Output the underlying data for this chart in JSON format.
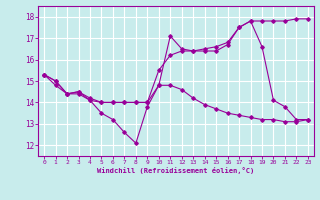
{
  "xlabel": "Windchill (Refroidissement éolien,°C)",
  "bg_color": "#c8ecec",
  "line_color": "#990099",
  "grid_color": "#ffffff",
  "xlim": [
    -0.5,
    23.5
  ],
  "ylim": [
    11.5,
    18.5
  ],
  "yticks": [
    12,
    13,
    14,
    15,
    16,
    17,
    18
  ],
  "xticks": [
    0,
    1,
    2,
    3,
    4,
    5,
    6,
    7,
    8,
    9,
    10,
    11,
    12,
    13,
    14,
    15,
    16,
    17,
    18,
    19,
    20,
    21,
    22,
    23
  ],
  "line1_x": [
    0,
    1,
    2,
    3,
    4,
    5,
    6,
    7,
    8,
    9,
    10,
    11,
    12,
    13,
    14,
    15,
    16,
    17,
    18,
    19,
    20,
    21,
    22,
    23
  ],
  "line1_y": [
    15.3,
    14.8,
    14.4,
    14.4,
    14.1,
    13.5,
    13.2,
    12.6,
    12.1,
    13.8,
    14.8,
    17.1,
    16.5,
    16.4,
    16.4,
    16.4,
    16.7,
    17.5,
    17.8,
    16.6,
    14.1,
    13.8,
    13.2,
    13.2
  ],
  "line2_x": [
    0,
    1,
    2,
    3,
    4,
    5,
    6,
    7,
    8,
    9,
    10,
    11,
    12,
    13,
    14,
    15,
    16,
    17,
    18,
    19,
    20,
    21,
    22,
    23
  ],
  "line2_y": [
    15.3,
    15.0,
    14.4,
    14.5,
    14.1,
    14.0,
    14.0,
    14.0,
    14.0,
    14.0,
    15.5,
    16.2,
    16.4,
    16.4,
    16.5,
    16.6,
    16.8,
    17.5,
    17.8,
    17.8,
    17.8,
    17.8,
    17.9,
    17.9
  ],
  "line3_x": [
    0,
    1,
    2,
    3,
    4,
    5,
    6,
    7,
    8,
    9,
    10,
    11,
    12,
    13,
    14,
    15,
    16,
    17,
    18,
    19,
    20,
    21,
    22,
    23
  ],
  "line3_y": [
    15.3,
    15.0,
    14.4,
    14.5,
    14.2,
    14.0,
    14.0,
    14.0,
    14.0,
    14.0,
    14.8,
    14.8,
    14.6,
    14.2,
    13.9,
    13.7,
    13.5,
    13.4,
    13.3,
    13.2,
    13.2,
    13.1,
    13.1,
    13.2
  ]
}
